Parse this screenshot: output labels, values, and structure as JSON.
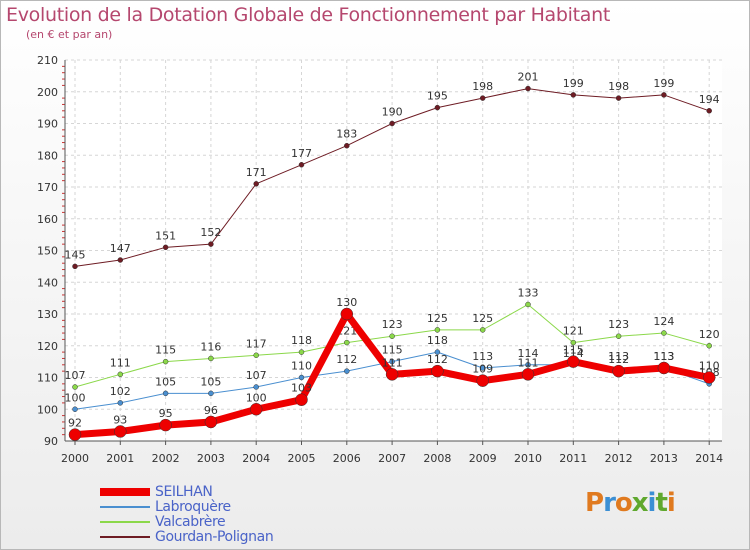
{
  "title": "Evolution de la Dotation Globale de Fonctionnement par Habitant",
  "subtitle": "(en € et par an)",
  "brand": {
    "text": "Proxiti",
    "colors": [
      "#e07a1f",
      "#3b8fd4",
      "#e07a1f",
      "#5fa82e",
      "#3b8fd4",
      "#5fa82e",
      "#e07a1f"
    ]
  },
  "chart_data": {
    "type": "line",
    "x": [
      2000,
      2001,
      2002,
      2003,
      2004,
      2005,
      2006,
      2007,
      2008,
      2009,
      2010,
      2011,
      2012,
      2013,
      2014
    ],
    "ylim": [
      90,
      210
    ],
    "yticks": [
      90,
      100,
      110,
      120,
      130,
      140,
      150,
      160,
      170,
      180,
      190,
      200,
      210
    ],
    "grid": true,
    "legend_position": "bottom-left",
    "series": [
      {
        "name": "Gourdan-Polignan",
        "color": "#6e1c24",
        "width": 1,
        "marker": 2.5,
        "values": [
          145,
          147,
          151,
          152,
          171,
          177,
          183,
          190,
          195,
          198,
          201,
          199,
          198,
          199,
          194
        ]
      },
      {
        "name": "Valcabrère",
        "color": "#8bd84a",
        "width": 1,
        "marker": 2.5,
        "values": [
          107,
          111,
          115,
          116,
          117,
          118,
          121,
          123,
          125,
          125,
          133,
          121,
          123,
          124,
          120
        ]
      },
      {
        "name": "Labroquère",
        "color": "#4a8fd0",
        "width": 1,
        "marker": 2.5,
        "values": [
          100,
          102,
          105,
          105,
          107,
          110,
          112,
          115,
          118,
          113,
          114,
          114,
          113,
          113,
          108
        ]
      },
      {
        "name": "SEILHAN",
        "color": "#ee0000",
        "width": 7,
        "marker": 6,
        "values": [
          92,
          93,
          95,
          96,
          100,
          103,
          130,
          111,
          112,
          109,
          111,
          115,
          112,
          113,
          110
        ]
      }
    ],
    "legend_order": [
      "SEILHAN",
      "Labroquère",
      "Valcabrère",
      "Gourdan-Polignan"
    ]
  }
}
